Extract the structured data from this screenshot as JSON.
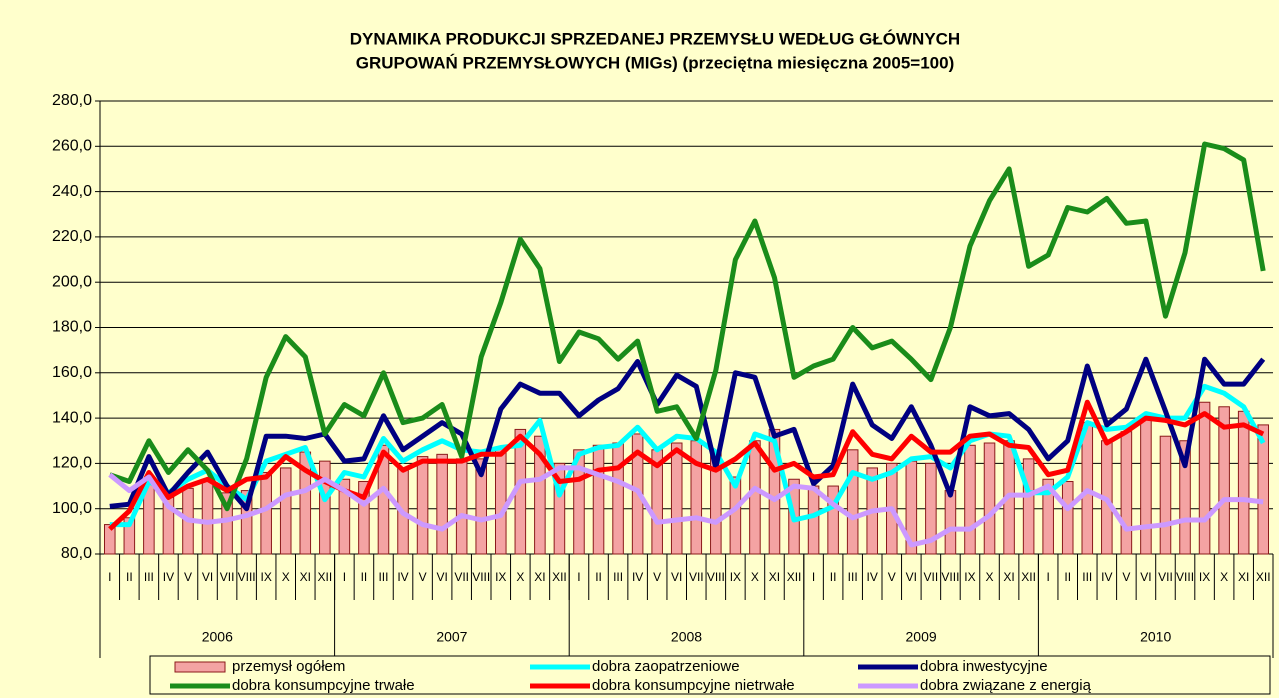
{
  "chart_data": {
    "type": "bar",
    "title": [
      "DYNAMIKA PRODUKCJI SPRZEDANEJ PRZEMYSŁU WEDŁUG GŁÓWNYCH",
      "GRUPOWAŃ PRZEMYSŁOWYCH (MIGs) (przeciętna miesięczna 2005=100)"
    ],
    "categories": [
      "I",
      "II",
      "III",
      "IV",
      "V",
      "VI",
      "VII",
      "VIII",
      "IX",
      "X",
      "XI",
      "XII",
      "I",
      "II",
      "III",
      "IV",
      "V",
      "VI",
      "VII",
      "VIII",
      "IX",
      "X",
      "XI",
      "XII",
      "I",
      "II",
      "III",
      "IV",
      "V",
      "VI",
      "VII",
      "VIII",
      "IX",
      "X",
      "XI",
      "XII",
      "I",
      "II",
      "III",
      "IV",
      "V",
      "VI",
      "VII",
      "VIII",
      "IX",
      "X",
      "XI",
      "XII",
      "I",
      "II",
      "III",
      "IV",
      "V",
      "VI",
      "VII",
      "VIII",
      "IX",
      "X",
      "XI",
      "XII"
    ],
    "year_groups": [
      "2006",
      "2007",
      "2008",
      "2009",
      "2010"
    ],
    "ylim": [
      80,
      280
    ],
    "yticks": [
      {
        "value": 80,
        "label": "80,0"
      },
      {
        "value": 100,
        "label": "100,0"
      },
      {
        "value": 120,
        "label": "120,0"
      },
      {
        "value": 140,
        "label": "140,0"
      },
      {
        "value": 160,
        "label": "160,0"
      },
      {
        "value": 180,
        "label": "180,0"
      },
      {
        "value": 200,
        "label": "200,0"
      },
      {
        "value": 220,
        "label": "220,0"
      },
      {
        "value": 240,
        "label": "240,0"
      },
      {
        "value": 260,
        "label": "260,0"
      },
      {
        "value": 280,
        "label": "280,0"
      }
    ],
    "grid": true,
    "legend": "bottom",
    "series": [
      {
        "name": "przemysł ogółem",
        "kind": "bar",
        "color": "#f4a3a3",
        "values": [
          93,
          96,
          113,
          105,
          109,
          113,
          107,
          108,
          116,
          118,
          125,
          121,
          113,
          112,
          128,
          118,
          123,
          124,
          122,
          122,
          127,
          135,
          132,
          120,
          126,
          128,
          129,
          133,
          126,
          129,
          130,
          125,
          114,
          130,
          135,
          113,
          110,
          110,
          126,
          118,
          120,
          121,
          120,
          108,
          128,
          129,
          130,
          122,
          113,
          112,
          138,
          130,
          134,
          140,
          132,
          130,
          147,
          145,
          143,
          137
        ]
      },
      {
        "name": "dobra zaopatrzeniowe",
        "kind": "line",
        "color": "#00ffff",
        "values": [
          93,
          93,
          112,
          107,
          113,
          117,
          110,
          104,
          121,
          124,
          127,
          104,
          116,
          114,
          131,
          121,
          126,
          130,
          126,
          125,
          127,
          128,
          139,
          106,
          124,
          127,
          128,
          136,
          126,
          132,
          131,
          125,
          110,
          133,
          130,
          95,
          97,
          101,
          116,
          113,
          116,
          122,
          123,
          118,
          130,
          133,
          132,
          107,
          107,
          114,
          138,
          135,
          136,
          142,
          140,
          140,
          154,
          151,
          145,
          129
        ]
      },
      {
        "name": "dobra inwestycyjne",
        "kind": "line",
        "color": "#000080",
        "values": [
          101,
          102,
          123,
          106,
          116,
          125,
          110,
          100,
          132,
          132,
          131,
          133,
          121,
          122,
          141,
          126,
          132,
          138,
          133,
          115,
          144,
          155,
          151,
          151,
          141,
          148,
          153,
          165,
          146,
          159,
          154,
          118,
          160,
          158,
          132,
          135,
          111,
          119,
          155,
          137,
          131,
          145,
          128,
          106,
          145,
          141,
          142,
          135,
          122,
          130,
          163,
          137,
          144,
          166,
          143,
          119,
          166,
          155,
          155,
          166
        ]
      },
      {
        "name": "dobra konsumpcyjne trwałe",
        "kind": "line",
        "color": "#1a8c1a",
        "values": [
          115,
          112,
          130,
          116,
          126,
          117,
          100,
          122,
          158,
          176,
          167,
          133,
          146,
          141,
          160,
          138,
          140,
          146,
          123,
          167,
          191,
          219,
          206,
          165,
          178,
          175,
          166,
          174,
          143,
          145,
          131,
          161,
          210,
          227,
          202,
          158,
          163,
          166,
          180,
          171,
          174,
          166,
          157,
          180,
          216,
          236,
          250,
          207,
          212,
          233,
          231,
          237,
          226,
          227,
          185,
          213,
          261,
          259,
          254,
          205
        ]
      },
      {
        "name": "dobra konsumpcyjne nietrwałe",
        "kind": "line",
        "color": "#ff0000",
        "values": [
          91,
          99,
          116,
          105,
          110,
          113,
          108,
          113,
          114,
          123,
          117,
          112,
          108,
          105,
          125,
          117,
          121,
          121,
          121,
          124,
          124,
          132,
          124,
          112,
          113,
          117,
          118,
          125,
          119,
          126,
          120,
          117,
          122,
          129,
          117,
          120,
          114,
          115,
          134,
          124,
          122,
          132,
          125,
          125,
          132,
          133,
          128,
          127,
          115,
          117,
          147,
          129,
          134,
          140,
          139,
          137,
          142,
          136,
          137,
          133
        ]
      },
      {
        "name": "dobra związane z energią",
        "kind": "line",
        "color": "#cc99ff",
        "values": [
          115,
          108,
          114,
          101,
          95,
          94,
          95,
          97,
          100,
          106,
          108,
          113,
          108,
          102,
          109,
          98,
          93,
          91,
          97,
          95,
          97,
          112,
          113,
          118,
          118,
          115,
          112,
          108,
          94,
          95,
          96,
          94,
          100,
          109,
          104,
          110,
          109,
          102,
          96,
          99,
          100,
          84,
          86,
          91,
          91,
          97,
          106,
          106,
          110,
          100,
          108,
          104,
          91,
          92,
          93,
          95,
          95,
          104,
          104,
          103
        ]
      }
    ]
  }
}
